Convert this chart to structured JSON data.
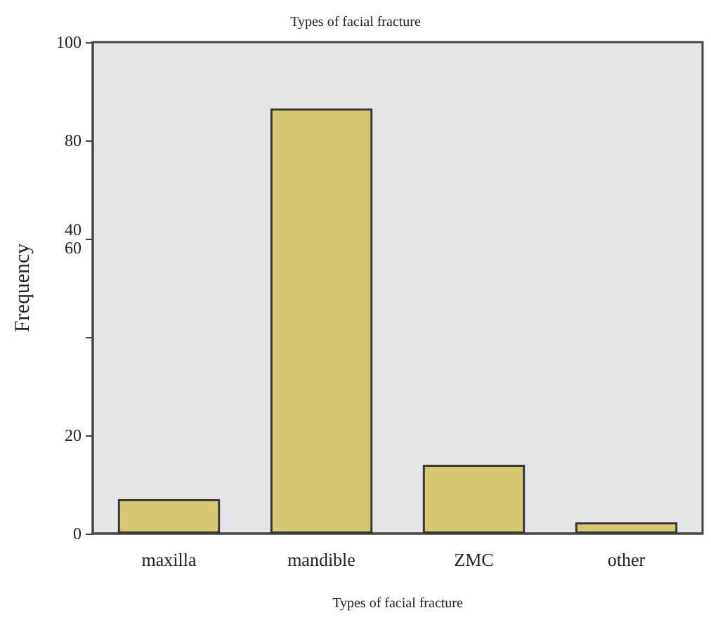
{
  "chart_data": {
    "type": "bar",
    "title": "Types of facial fracture",
    "xlabel": "Types of facial fracture",
    "ylabel": "Frequency",
    "categories": [
      "maxilla",
      "mandible",
      "ZMC",
      "other"
    ],
    "values": [
      7,
      86.5,
      14,
      2.3
    ],
    "color": "#d6c872",
    "ylim": [
      0,
      100
    ],
    "yticks": [
      0,
      20,
      {
        "value": 40,
        "label": null
      },
      {
        "value": 60,
        "label": "40\n60"
      },
      80,
      100
    ],
    "grid": false
  }
}
